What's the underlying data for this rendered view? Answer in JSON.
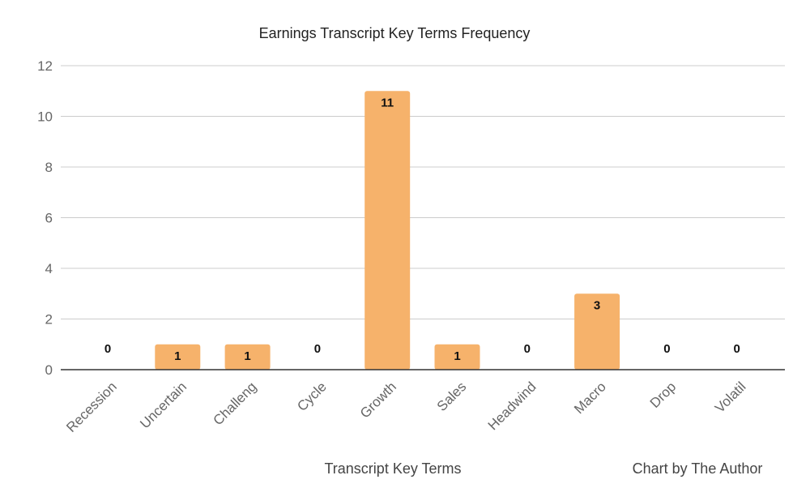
{
  "chart_data": {
    "type": "bar",
    "title": "Earnings Transcript Key Terms Frequency",
    "xlabel": "Transcript Key Terms",
    "ylabel": "",
    "credit": "Chart by The Author",
    "categories": [
      "Recession",
      "Uncertain",
      "Challeng",
      "Cycle",
      "Growth",
      "Sales",
      "Headwind",
      "Macro",
      "Drop",
      "Volatil"
    ],
    "values": [
      0,
      1,
      1,
      0,
      11,
      1,
      0,
      3,
      0,
      0
    ],
    "ylim": [
      0,
      12
    ],
    "yticks": [
      0,
      2,
      4,
      6,
      8,
      10,
      12
    ],
    "grid": true,
    "data_labels": true,
    "legend": "none",
    "colors": {
      "bar": "#f6b26b",
      "grid": "#cccccc",
      "baseline": "#333333"
    }
  }
}
